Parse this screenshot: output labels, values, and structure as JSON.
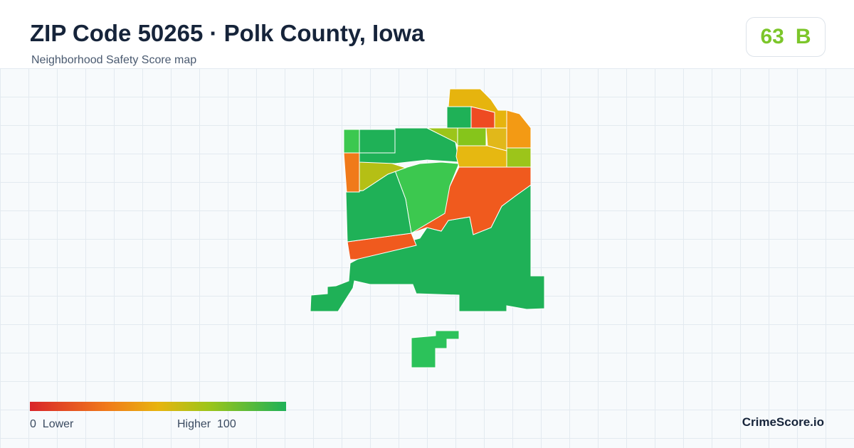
{
  "header": {
    "title": "ZIP Code 50265 · Polk County, Iowa",
    "subtitle": "Neighborhood Safety Score map"
  },
  "score": {
    "value": 63,
    "grade": "B"
  },
  "legend": {
    "min": 0,
    "min_label": "Lower",
    "max_label": "Higher",
    "max": 100
  },
  "brand": "CrimeScore.io"
}
